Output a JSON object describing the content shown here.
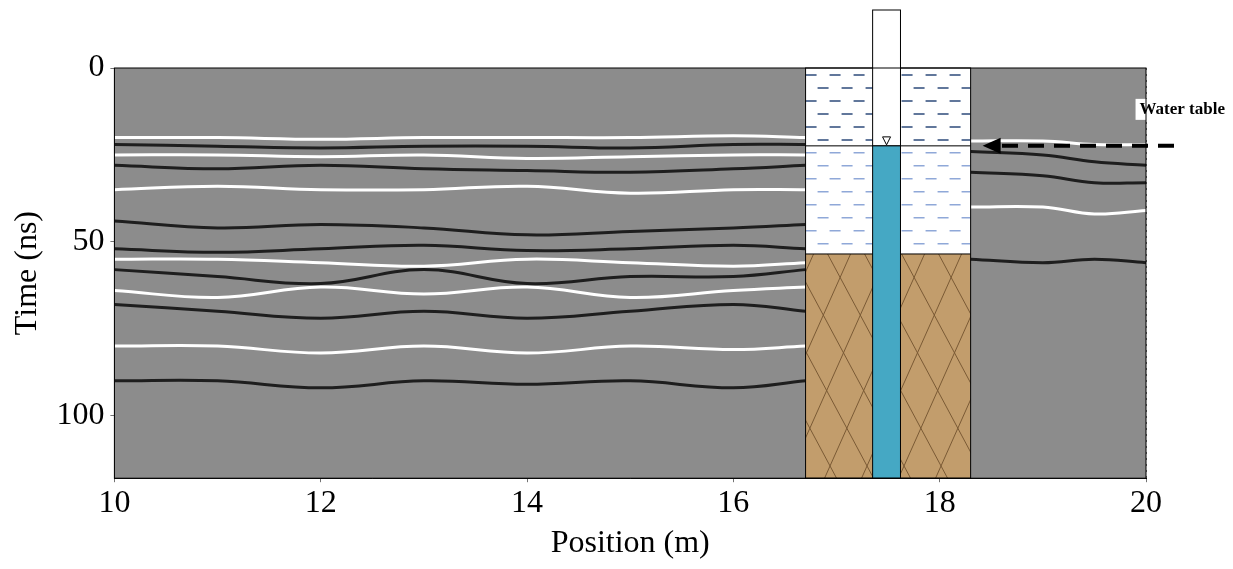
{
  "chart_data": {
    "type": "radargram",
    "x_label": "Position (m)",
    "y_label": "Time (ns)",
    "xlim": [
      10,
      20
    ],
    "xticks": [
      10,
      12,
      14,
      16,
      18,
      20
    ],
    "ylim": [
      0,
      118
    ],
    "yticks": [
      0,
      50,
      100
    ],
    "grid": true,
    "color": "#8c8c8c",
    "series": [
      {
        "color": "#ffffff",
        "x": [
          10,
          11,
          12,
          13,
          14,
          15,
          16,
          16.7
        ],
        "values": [
          20,
          20,
          20.5,
          20,
          20,
          20,
          19.5,
          20
        ]
      },
      {
        "color": "#1e1e1e",
        "x": [
          10,
          11,
          12,
          13,
          14,
          15,
          16,
          16.7
        ],
        "values": [
          22,
          22.5,
          23,
          22.5,
          22.5,
          23,
          22,
          22
        ]
      },
      {
        "color": "#ffffff",
        "x": [
          10,
          11,
          12,
          13,
          14,
          15,
          16,
          16.7
        ],
        "values": [
          25,
          25,
          25.5,
          25,
          26,
          25.5,
          25,
          25
        ]
      },
      {
        "color": "#1e1e1e",
        "x": [
          10,
          11,
          12,
          13,
          14,
          15,
          16,
          16.7
        ],
        "values": [
          28,
          29,
          28,
          29,
          29.5,
          30,
          29,
          28
        ]
      },
      {
        "color": "#ffffff",
        "x": [
          10,
          11,
          12,
          13,
          14,
          15,
          16,
          16.7
        ],
        "values": [
          35,
          34,
          35,
          35,
          34,
          36,
          35,
          35
        ]
      },
      {
        "color": "#1e1e1e",
        "x": [
          10,
          11,
          12,
          13,
          14,
          15,
          16,
          16.7
        ],
        "values": [
          44,
          46,
          45,
          46,
          48,
          47,
          46,
          45
        ]
      },
      {
        "color": "#1e1e1e",
        "x": [
          10,
          11,
          12,
          13,
          14,
          15,
          16,
          16.7
        ],
        "values": [
          52,
          53,
          52,
          51,
          52.5,
          52,
          51,
          52
        ]
      },
      {
        "color": "#ffffff",
        "x": [
          10,
          11,
          12,
          13,
          14,
          15,
          16,
          16.7
        ],
        "values": [
          55,
          55,
          56,
          57,
          55,
          56,
          57,
          56
        ]
      },
      {
        "color": "#1e1e1e",
        "x": [
          10,
          11,
          12,
          13,
          14,
          15,
          16,
          16.7
        ],
        "values": [
          58,
          60,
          62,
          58,
          62,
          60,
          60,
          58
        ]
      },
      {
        "color": "#ffffff",
        "x": [
          10,
          11,
          12,
          13,
          14,
          15,
          16,
          16.7
        ],
        "values": [
          64,
          66,
          63,
          65,
          63,
          66,
          64,
          63
        ]
      },
      {
        "color": "#1e1e1e",
        "x": [
          10,
          11,
          12,
          13,
          14,
          15,
          16,
          16.7
        ],
        "values": [
          68,
          70,
          72,
          70,
          72,
          70,
          68,
          70
        ]
      },
      {
        "color": "#ffffff",
        "x": [
          10,
          11,
          12,
          13,
          14,
          15,
          16,
          16.7
        ],
        "values": [
          80,
          80,
          82,
          80,
          82,
          80,
          81,
          80
        ]
      },
      {
        "color": "#1e1e1e",
        "x": [
          10,
          11,
          12,
          13,
          14,
          15,
          16,
          16.7
        ],
        "values": [
          90,
          90,
          92,
          90,
          91,
          90,
          92,
          90
        ]
      },
      {
        "color": "#ffffff",
        "x": [
          18.3,
          19,
          19.5,
          20
        ],
        "values": [
          21,
          21,
          22,
          22
        ]
      },
      {
        "color": "#1e1e1e",
        "x": [
          18.3,
          19,
          19.5,
          20
        ],
        "values": [
          24,
          25,
          27,
          28
        ]
      },
      {
        "color": "#1e1e1e",
        "x": [
          18.3,
          19,
          19.5,
          20
        ],
        "values": [
          30,
          31,
          33,
          33
        ]
      },
      {
        "color": "#ffffff",
        "x": [
          18.3,
          19,
          19.5,
          20
        ],
        "values": [
          40,
          40,
          42,
          41
        ]
      },
      {
        "color": "#1e1e1e",
        "x": [
          18.3,
          19,
          19.5,
          20
        ],
        "values": [
          55,
          56,
          55,
          56
        ]
      }
    ],
    "well": {
      "xlim": [
        16.7,
        18.3
      ],
      "pipe_x": [
        17.35,
        17.62
      ],
      "water_table": 22.4,
      "bedrock_top": 53.5
    },
    "annotation": "Water table"
  }
}
